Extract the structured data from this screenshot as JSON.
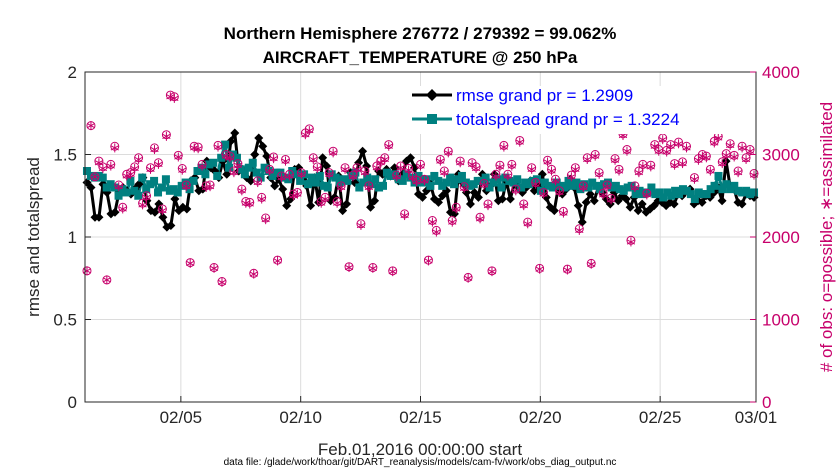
{
  "chart_data": {
    "type": "line",
    "title_line1": "Northern Hemisphere 276772 / 279392 = 99.062%",
    "title_line2": "AIRCRAFT_TEMPERATURE @ 250 hPa",
    "ylabel_left": "rmse and totalspread",
    "ylabel_right": "# of obs: o=possible; ∗=assimilated",
    "xlabel": "Feb.01,2016 00:00:00 start",
    "datafile": "data file: /glade/work/thoar/git/DART_reanalysis/models/cam-fv/work/obs_diag_output.nc",
    "ylim_left": [
      0,
      2
    ],
    "ylim_right": [
      0,
      4000
    ],
    "xlim_days": [
      1,
      29
    ],
    "yticks_left": [
      "0",
      "0.5",
      "1",
      "1.5",
      "2"
    ],
    "yticks_right": [
      "0",
      "1000",
      "2000",
      "3000",
      "4000"
    ],
    "xticks": [
      {
        "day": 5,
        "label": "02/05"
      },
      {
        "day": 10,
        "label": "02/10"
      },
      {
        "day": 15,
        "label": "02/15"
      },
      {
        "day": 20,
        "label": "02/20"
      },
      {
        "day": 25,
        "label": "02/25"
      },
      {
        "day": 29,
        "label": "03/01"
      }
    ],
    "grid": true,
    "legend_position": "top-right",
    "series": [
      {
        "name": "rmse grand pr = 1.2909",
        "color": "#000000",
        "marker": "diamond",
        "values": [
          1.33,
          1.3,
          1.12,
          1.12,
          1.32,
          1.27,
          1.14,
          1.15,
          1.27,
          1.3,
          1.28,
          1.26,
          1.29,
          1.32,
          1.36,
          1.22,
          1.16,
          1.15,
          1.2,
          1.12,
          1.06,
          1.07,
          1.23,
          1.16,
          1.18,
          1.17,
          1.34,
          1.36,
          1.28,
          1.29,
          1.46,
          1.42,
          1.4,
          1.36,
          1.46,
          1.38,
          1.58,
          1.63,
          1.4,
          1.41,
          1.36,
          1.34,
          1.5,
          1.6,
          1.55,
          1.49,
          1.36,
          1.31,
          1.35,
          1.29,
          1.19,
          1.23,
          1.41,
          1.42,
          1.35,
          1.31,
          1.19,
          1.36,
          1.21,
          1.48,
          1.43,
          1.22,
          1.24,
          1.37,
          1.16,
          1.2,
          1.39,
          1.33,
          1.45,
          1.52,
          1.43,
          1.18,
          1.22,
          1.4,
          1.38,
          1.41,
          1.37,
          1.42,
          1.34,
          1.38,
          1.46,
          1.48,
          1.42,
          1.26,
          1.24,
          1.28,
          1.32,
          1.23,
          1.21,
          1.25,
          1.28,
          1.15,
          1.14,
          1.38,
          1.33,
          1.27,
          1.2,
          1.27,
          1.24,
          1.38,
          1.28,
          1.31,
          1.38,
          1.22,
          1.23,
          1.34,
          1.23,
          1.33,
          1.3,
          1.27,
          1.3,
          1.34,
          1.28,
          1.31,
          1.38,
          1.24,
          1.18,
          1.16,
          1.3,
          1.26,
          1.29,
          1.35,
          1.3,
          1.19,
          1.09,
          1.21,
          1.26,
          1.22,
          1.3,
          1.27,
          1.23,
          1.2,
          1.27,
          1.22,
          1.25,
          1.23,
          1.18,
          1.24,
          1.16,
          1.2,
          1.15,
          1.17,
          1.19,
          1.22,
          1.21,
          1.19,
          1.21,
          1.2,
          1.26,
          1.25,
          1.28,
          1.29,
          1.2,
          1.22,
          1.21,
          1.25,
          1.24,
          1.27,
          1.3,
          1.22,
          1.46,
          1.31,
          1.29,
          1.21,
          1.2,
          1.26,
          1.25,
          1.24
        ]
      },
      {
        "name": "totalspread grand pr = 1.3224",
        "color": "#008080",
        "marker": "square",
        "values": [
          1.4,
          1.37,
          1.36,
          1.37,
          1.36,
          1.3,
          1.32,
          1.3,
          1.25,
          1.29,
          1.27,
          1.34,
          1.28,
          1.25,
          1.36,
          1.29,
          1.32,
          1.34,
          1.27,
          1.3,
          1.35,
          1.28,
          1.29,
          1.27,
          1.31,
          1.33,
          1.29,
          1.34,
          1.4,
          1.42,
          1.38,
          1.44,
          1.45,
          1.37,
          1.48,
          1.56,
          1.42,
          1.5,
          1.48,
          1.41,
          1.38,
          1.42,
          1.45,
          1.39,
          1.36,
          1.42,
          1.4,
          1.37,
          1.39,
          1.39,
          1.36,
          1.35,
          1.4,
          1.38,
          1.34,
          1.38,
          1.32,
          1.36,
          1.33,
          1.37,
          1.31,
          1.3,
          1.38,
          1.36,
          1.33,
          1.35,
          1.34,
          1.37,
          1.39,
          1.3,
          1.33,
          1.36,
          1.32,
          1.35,
          1.3,
          1.31,
          1.39,
          1.37,
          1.38,
          1.35,
          1.34,
          1.38,
          1.36,
          1.33,
          1.37,
          1.33,
          1.35,
          1.31,
          1.37,
          1.34,
          1.31,
          1.33,
          1.36,
          1.32,
          1.35,
          1.37,
          1.33,
          1.31,
          1.32,
          1.34,
          1.34,
          1.36,
          1.3,
          1.33,
          1.35,
          1.3,
          1.36,
          1.34,
          1.33,
          1.35,
          1.3,
          1.33,
          1.32,
          1.34,
          1.35,
          1.28,
          1.33,
          1.31,
          1.3,
          1.33,
          1.31,
          1.3,
          1.34,
          1.31,
          1.33,
          1.29,
          1.32,
          1.3,
          1.33,
          1.31,
          1.29,
          1.32,
          1.33,
          1.3,
          1.31,
          1.29,
          1.28,
          1.3,
          1.31,
          1.26,
          1.28,
          1.26,
          1.27,
          1.3,
          1.26,
          1.27,
          1.24,
          1.27,
          1.25,
          1.28,
          1.26,
          1.29,
          1.28,
          1.26,
          1.23,
          1.27,
          1.26,
          1.26,
          1.29,
          1.31,
          1.37,
          1.29,
          1.32,
          1.29,
          1.31,
          1.28,
          1.27,
          1.28,
          1.26,
          1.27
        ]
      },
      {
        "name": "possible",
        "color": "#c7006b",
        "marker": "circle",
        "axis": "right",
        "values": [
          1590,
          3350,
          2730,
          2920,
          2850,
          1480,
          2880,
          3100,
          2630,
          2360,
          2760,
          2780,
          2850,
          2960,
          2410,
          2500,
          2840,
          3080,
          2900,
          2340,
          3240,
          3720,
          3700,
          2990,
          2830,
          2630,
          1690,
          3100,
          3090,
          2880,
          2620,
          2630,
          1630,
          3110,
          1460,
          3000,
          2980,
          2800,
          2890,
          2580,
          2430,
          2420,
          1560,
          2680,
          2480,
          2230,
          2820,
          2970,
          1720,
          2740,
          2940,
          2760,
          2520,
          2540,
          2780,
          3260,
          3310,
          2960,
          2850,
          2430,
          2480,
          2780,
          3040,
          2430,
          2620,
          2840,
          1640,
          2750,
          2840,
          2160,
          2800,
          2620,
          1630,
          2860,
          2920,
          2960,
          3120,
          1590,
          2750,
          2860,
          2280,
          2830,
          2740,
          2690,
          2880,
          2700,
          1720,
          2200,
          2080,
          2940,
          2800,
          3040,
          2200,
          2360,
          2920,
          2610,
          1510,
          2900,
          2850,
          2240,
          2650,
          2400,
          1590,
          2760,
          2870,
          3110,
          2760,
          2880,
          2580,
          3170,
          2400,
          2180,
          2840,
          2660,
          1620,
          2540,
          2930,
          2820,
          2700,
          2560,
          2310,
          1610,
          2750,
          2840,
          2100,
          2620,
          2960,
          1680,
          3000,
          2780,
          2530,
          2630,
          2470,
          2950,
          2820,
          3250,
          3060,
          1960,
          2620,
          2800,
          2880,
          2530,
          2870,
          3120,
          3060,
          3200,
          3050,
          3120,
          2890,
          3150,
          2910,
          3100,
          3370,
          2720,
          2950,
          3000,
          2980,
          2820,
          3160,
          3220,
          2910,
          3010,
          3130,
          2990,
          2800,
          3100,
          2960,
          3060,
          2770
        ]
      },
      {
        "name": "assimilated",
        "color": "#c7006b",
        "marker": "star",
        "axis": "right",
        "values": [
          1590,
          3350,
          2730,
          2900,
          2830,
          1480,
          2860,
          3080,
          2610,
          2340,
          2740,
          2760,
          2830,
          2940,
          2390,
          2480,
          2820,
          3060,
          2880,
          2320,
          3220,
          3700,
          3680,
          2970,
          2810,
          2610,
          1680,
          3080,
          3070,
          2860,
          2600,
          2610,
          1620,
          3090,
          1450,
          2980,
          2960,
          2780,
          2870,
          2560,
          2410,
          2400,
          1550,
          2660,
          2460,
          2210,
          2800,
          2950,
          1710,
          2720,
          2920,
          2740,
          2500,
          2520,
          2760,
          3240,
          3290,
          2940,
          2830,
          2410,
          2460,
          2760,
          3020,
          2410,
          2600,
          2820,
          1630,
          2730,
          2820,
          2140,
          2780,
          2600,
          1620,
          2840,
          2900,
          2940,
          3100,
          1580,
          2730,
          2840,
          2260,
          2810,
          2720,
          2670,
          2860,
          2680,
          1710,
          2180,
          2060,
          2920,
          2780,
          3020,
          2180,
          2340,
          2900,
          2590,
          1500,
          2880,
          2830,
          2220,
          2630,
          2380,
          1580,
          2740,
          2850,
          3090,
          2740,
          2860,
          2560,
          3150,
          2380,
          2160,
          2820,
          2640,
          1610,
          2520,
          2910,
          2800,
          2680,
          2540,
          2290,
          1600,
          2730,
          2820,
          2080,
          2600,
          2940,
          1670,
          2980,
          2760,
          2510,
          2610,
          2450,
          2930,
          2800,
          3230,
          3040,
          1940,
          2600,
          2780,
          2860,
          2510,
          2850,
          3100,
          3040,
          3180,
          3030,
          3100,
          2870,
          3130,
          2890,
          3080,
          3350,
          2700,
          2930,
          2980,
          2960,
          2800,
          3140,
          3200,
          2890,
          2990,
          3110,
          2970,
          2780,
          3080,
          2940,
          3040,
          2750
        ]
      }
    ]
  }
}
